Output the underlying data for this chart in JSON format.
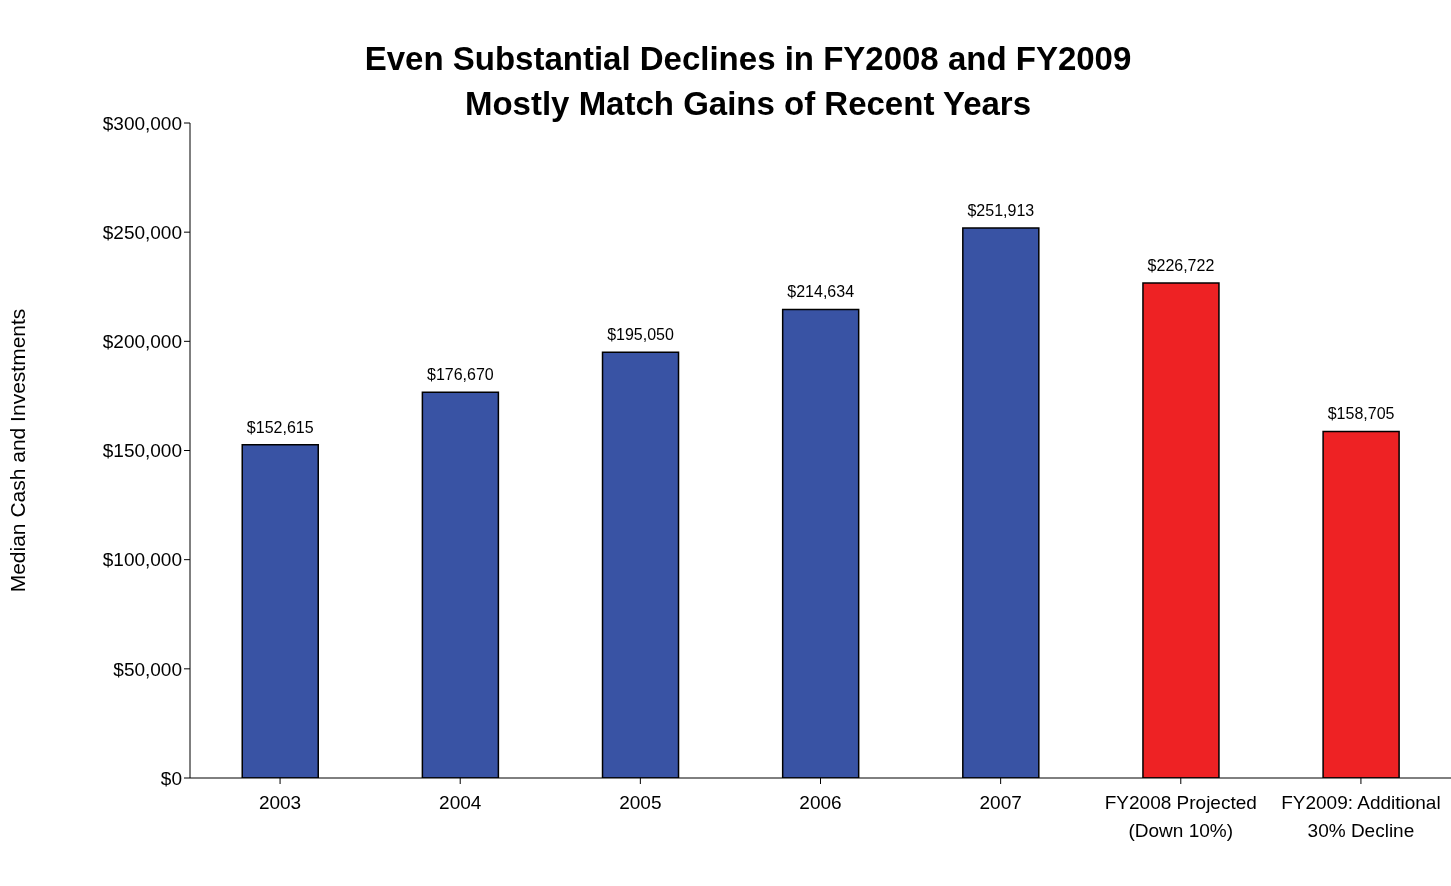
{
  "chart_data": {
    "type": "bar",
    "title": "Even Substantial Declines in FY2008 and FY2009\nMostly Match Gains of Recent Years",
    "ylabel": "Median Cash and Investments",
    "categories": [
      "2003",
      "2004",
      "2005",
      "2006",
      "2007",
      "FY2008 Projected (Down 10%)",
      "FY2009: Additional 30% Decline"
    ],
    "values": [
      152615,
      176670,
      195050,
      214634,
      251913,
      226722,
      158705
    ],
    "colors": [
      "#3953a4",
      "#3953a4",
      "#3953a4",
      "#3953a4",
      "#3953a4",
      "#ee2224",
      "#ee2224"
    ],
    "value_labels": [
      "$152,615",
      "$176,670",
      "$195,050",
      "$214,634",
      "$251,913",
      "$226,722",
      "$158,705"
    ],
    "ylim": [
      0,
      300000
    ],
    "yticks": [
      {
        "value": 0,
        "label": "$0"
      },
      {
        "value": 50000,
        "label": "$50,000"
      },
      {
        "value": 100000,
        "label": "$100,000"
      },
      {
        "value": 150000,
        "label": "$150,000"
      },
      {
        "value": 200000,
        "label": "$200,000"
      },
      {
        "value": 250000,
        "label": "$250,000"
      },
      {
        "value": 300000,
        "label": "$300,000"
      }
    ],
    "grid": false,
    "legend": false
  }
}
